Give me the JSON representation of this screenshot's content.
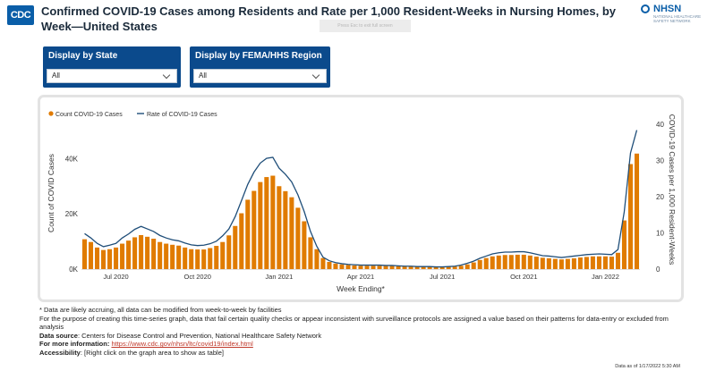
{
  "header": {
    "logo_text": "CDC",
    "title": "Confirmed COVID-19 Cases among Residents and Rate per 1,000 Resident-Weeks in Nursing Homes, by Week—United States",
    "nhsn_text": "NHSN",
    "nhsn_subtitle": "NATIONAL HEALTHCARE SAFETY NETWORK",
    "fullscreen_tip": "Press  Esc  to exit full screen"
  },
  "filters": {
    "state": {
      "label": "Display by State",
      "value": "All"
    },
    "region": {
      "label": "Display by FEMA/HHS Region",
      "value": "All"
    }
  },
  "chart_data": {
    "type": "bar",
    "legend": [
      "Count COVID-19 Cases",
      "Rate of COVID-19 Cases"
    ],
    "legend_position": "top-left",
    "xlabel": "Week Ending*",
    "ylabel": "Count of COVID Cases",
    "y2label": "COVID-19 Cases per 1,000 Resident-Weeks",
    "ylim": [
      0,
      55000
    ],
    "y2lim": [
      0,
      42
    ],
    "yticks": [
      "0K",
      "20K",
      "40K"
    ],
    "y2ticks": [
      "0",
      "10",
      "20",
      "30",
      "40"
    ],
    "xticks": [
      "Jul 2020",
      "Oct 2020",
      "Jan 2021",
      "Apr 2021",
      "Jul 2021",
      "Oct 2021",
      "Jan 2022"
    ],
    "xtick_indices": [
      5,
      18,
      31,
      44,
      57,
      70,
      83
    ],
    "colors": {
      "bars": "#e07b00",
      "line": "#1f4e79"
    },
    "series": [
      {
        "name": "Count COVID-19 Cases",
        "values": [
          10800,
          9800,
          7800,
          6900,
          7200,
          7800,
          9200,
          10300,
          11500,
          12300,
          11700,
          11000,
          9800,
          9200,
          8800,
          8500,
          7800,
          7200,
          7100,
          7100,
          7600,
          8400,
          9800,
          12200,
          15600,
          20200,
          25100,
          28300,
          31500,
          33300,
          33800,
          30000,
          28200,
          26000,
          22200,
          17300,
          11500,
          7200,
          4000,
          2600,
          2000,
          1700,
          1500,
          1300,
          1200,
          1200,
          1200,
          1200,
          1100,
          1100,
          1000,
          900,
          900,
          800,
          800,
          800,
          700,
          700,
          800,
          900,
          1200,
          1700,
          2400,
          3300,
          4000,
          4600,
          4900,
          5100,
          5100,
          5200,
          5200,
          4900,
          4500,
          4100,
          3900,
          3700,
          3500,
          3700,
          3900,
          4200,
          4400,
          4600,
          4600,
          4600,
          4500,
          5900,
          17600,
          38000,
          41800
        ],
        "bar_labels": []
      },
      {
        "name": "Rate of COVID-19 Cases",
        "values": [
          9.8,
          8.6,
          7.1,
          6.2,
          6.6,
          7.1,
          8.6,
          9.7,
          11.0,
          11.8,
          11.1,
          10.4,
          9.3,
          8.6,
          8.1,
          7.8,
          7.2,
          6.7,
          6.5,
          6.6,
          7.0,
          7.7,
          9.2,
          11.1,
          14.5,
          18.9,
          23.4,
          26.8,
          29.3,
          30.6,
          30.9,
          27.9,
          26.2,
          24.1,
          20.5,
          15.9,
          10.4,
          6.3,
          3.3,
          2.3,
          1.8,
          1.5,
          1.3,
          1.2,
          1.1,
          1.1,
          1.1,
          1.1,
          1.0,
          1.0,
          0.9,
          0.8,
          0.8,
          0.7,
          0.7,
          0.7,
          0.6,
          0.6,
          0.7,
          0.8,
          1.1,
          1.6,
          2.2,
          3.0,
          3.6,
          4.2,
          4.5,
          4.7,
          4.7,
          4.8,
          4.8,
          4.5,
          4.1,
          3.7,
          3.6,
          3.4,
          3.2,
          3.4,
          3.6,
          3.8,
          4.0,
          4.1,
          4.2,
          4.1,
          4.0,
          5.4,
          15.8,
          32.1,
          38.4
        ]
      }
    ]
  },
  "notes": {
    "note1": "* Data are likely accruing, all data can be modified from week-to-week by facilities",
    "note2": "For the purpose of creating this time-series graph, data that fail certain quality checks or appear inconsistent with surveillance protocols are assigned a value based on their patterns for data-entry or excluded from analysis",
    "source_label": "Data source",
    "source_text": ": Centers for Disease Control and Prevention, National Healthcare Safety Network",
    "info_label": "For more information",
    "info_link": "https://www.cdc.gov/nhsn/ltc/covid19/index.html",
    "access_label": "Accessibility",
    "access_text": ": [Right click on the graph area to show as table]",
    "as_of": "Data as of 1/17/2022 5:30 AM"
  }
}
